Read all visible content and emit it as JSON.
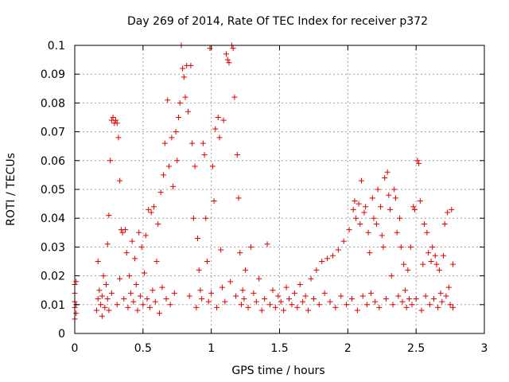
{
  "chart_data": {
    "type": "scatter",
    "title": "Day 269 of 2014, Rate Of TEC Index for receiver p372",
    "xlabel": "GPS time / hours",
    "ylabel": "ROTI / TECUs",
    "xlim": [
      0,
      3
    ],
    "ylim": [
      0,
      0.1
    ],
    "xticks": [
      0,
      0.5,
      1,
      1.5,
      2,
      2.5,
      3
    ],
    "xtick_labels": [
      "0",
      "0.5",
      "1",
      "1.5",
      "2",
      "2.5",
      "3"
    ],
    "yticks": [
      0,
      0.01,
      0.02,
      0.03,
      0.04,
      0.05,
      0.06,
      0.07,
      0.08,
      0.09,
      0.1
    ],
    "ytick_labels": [
      "0",
      "0.01",
      "0.02",
      "0.03",
      "0.04",
      "0.05",
      "0.06",
      "0.07",
      "0.08",
      "0.09",
      "0.1"
    ],
    "grid": true,
    "marker": "+",
    "color": "#e00000",
    "series": [
      {
        "name": "ROTI",
        "points": [
          [
            0.0,
            0.005
          ],
          [
            0.0,
            0.009
          ],
          [
            0.0,
            0.011
          ],
          [
            0.0,
            0.014
          ],
          [
            0.0,
            0.017
          ],
          [
            0.01,
            0.018
          ],
          [
            0.01,
            0.007
          ],
          [
            0.01,
            0.01
          ],
          [
            0.16,
            0.008
          ],
          [
            0.17,
            0.012
          ],
          [
            0.17,
            0.025
          ],
          [
            0.18,
            0.015
          ],
          [
            0.19,
            0.01
          ],
          [
            0.2,
            0.006
          ],
          [
            0.2,
            0.013
          ],
          [
            0.21,
            0.02
          ],
          [
            0.22,
            0.009
          ],
          [
            0.23,
            0.017
          ],
          [
            0.24,
            0.012
          ],
          [
            0.24,
            0.031
          ],
          [
            0.25,
            0.041
          ],
          [
            0.25,
            0.008
          ],
          [
            0.26,
            0.06
          ],
          [
            0.27,
            0.014
          ],
          [
            0.27,
            0.074
          ],
          [
            0.28,
            0.075
          ],
          [
            0.29,
            0.073
          ],
          [
            0.3,
            0.074
          ],
          [
            0.31,
            0.073
          ],
          [
            0.31,
            0.01
          ],
          [
            0.32,
            0.068
          ],
          [
            0.33,
            0.053
          ],
          [
            0.33,
            0.019
          ],
          [
            0.34,
            0.036
          ],
          [
            0.35,
            0.035
          ],
          [
            0.36,
            0.012
          ],
          [
            0.37,
            0.036
          ],
          [
            0.38,
            0.028
          ],
          [
            0.39,
            0.009
          ],
          [
            0.4,
            0.02
          ],
          [
            0.41,
            0.014
          ],
          [
            0.42,
            0.032
          ],
          [
            0.43,
            0.011
          ],
          [
            0.44,
            0.026
          ],
          [
            0.45,
            0.017
          ],
          [
            0.46,
            0.008
          ],
          [
            0.47,
            0.035
          ],
          [
            0.48,
            0.013
          ],
          [
            0.49,
            0.03
          ],
          [
            0.5,
            0.01
          ],
          [
            0.51,
            0.021
          ],
          [
            0.52,
            0.034
          ],
          [
            0.53,
            0.012
          ],
          [
            0.54,
            0.043
          ],
          [
            0.55,
            0.009
          ],
          [
            0.56,
            0.042
          ],
          [
            0.57,
            0.015
          ],
          [
            0.58,
            0.044
          ],
          [
            0.59,
            0.011
          ],
          [
            0.6,
            0.025
          ],
          [
            0.61,
            0.038
          ],
          [
            0.62,
            0.007
          ],
          [
            0.63,
            0.049
          ],
          [
            0.64,
            0.016
          ],
          [
            0.65,
            0.055
          ],
          [
            0.66,
            0.066
          ],
          [
            0.67,
            0.012
          ],
          [
            0.68,
            0.081
          ],
          [
            0.69,
            0.058
          ],
          [
            0.7,
            0.01
          ],
          [
            0.71,
            0.068
          ],
          [
            0.72,
            0.051
          ],
          [
            0.73,
            0.014
          ],
          [
            0.74,
            0.07
          ],
          [
            0.75,
            0.06
          ],
          [
            0.76,
            0.075
          ],
          [
            0.77,
            0.08
          ],
          [
            0.78,
            0.1
          ],
          [
            0.79,
            0.092
          ],
          [
            0.8,
            0.089
          ],
          [
            0.81,
            0.082
          ],
          [
            0.82,
            0.093
          ],
          [
            0.83,
            0.077
          ],
          [
            0.84,
            0.013
          ],
          [
            0.85,
            0.093
          ],
          [
            0.86,
            0.066
          ],
          [
            0.87,
            0.04
          ],
          [
            0.88,
            0.058
          ],
          [
            0.89,
            0.009
          ],
          [
            0.9,
            0.033
          ],
          [
            0.91,
            0.022
          ],
          [
            0.92,
            0.015
          ],
          [
            0.93,
            0.012
          ],
          [
            0.94,
            0.066
          ],
          [
            0.95,
            0.062
          ],
          [
            0.96,
            0.04
          ],
          [
            0.97,
            0.025
          ],
          [
            0.98,
            0.011
          ],
          [
            0.99,
            0.099
          ],
          [
            1.0,
            0.014
          ],
          [
            1.01,
            0.058
          ],
          [
            1.02,
            0.046
          ],
          [
            1.03,
            0.071
          ],
          [
            1.04,
            0.009
          ],
          [
            1.05,
            0.075
          ],
          [
            1.06,
            0.068
          ],
          [
            1.07,
            0.029
          ],
          [
            1.08,
            0.016
          ],
          [
            1.09,
            0.074
          ],
          [
            1.1,
            0.011
          ],
          [
            1.11,
            0.097
          ],
          [
            1.12,
            0.095
          ],
          [
            1.13,
            0.094
          ],
          [
            1.14,
            0.018
          ],
          [
            1.15,
            0.1
          ],
          [
            1.16,
            0.099
          ],
          [
            1.17,
            0.082
          ],
          [
            1.18,
            0.013
          ],
          [
            1.19,
            0.062
          ],
          [
            1.2,
            0.047
          ],
          [
            1.21,
            0.028
          ],
          [
            1.22,
            0.01
          ],
          [
            1.23,
            0.015
          ],
          [
            1.24,
            0.012
          ],
          [
            1.25,
            0.022
          ],
          [
            1.27,
            0.009
          ],
          [
            1.29,
            0.03
          ],
          [
            1.31,
            0.014
          ],
          [
            1.33,
            0.011
          ],
          [
            1.35,
            0.019
          ],
          [
            1.37,
            0.008
          ],
          [
            1.39,
            0.012
          ],
          [
            1.41,
            0.031
          ],
          [
            1.43,
            0.01
          ],
          [
            1.45,
            0.015
          ],
          [
            1.47,
            0.009
          ],
          [
            1.49,
            0.013
          ],
          [
            1.51,
            0.011
          ],
          [
            1.53,
            0.008
          ],
          [
            1.55,
            0.016
          ],
          [
            1.57,
            0.012
          ],
          [
            1.59,
            0.01
          ],
          [
            1.61,
            0.014
          ],
          [
            1.63,
            0.009
          ],
          [
            1.65,
            0.017
          ],
          [
            1.67,
            0.011
          ],
          [
            1.69,
            0.013
          ],
          [
            1.71,
            0.008
          ],
          [
            1.73,
            0.019
          ],
          [
            1.75,
            0.012
          ],
          [
            1.77,
            0.022
          ],
          [
            1.79,
            0.01
          ],
          [
            1.81,
            0.025
          ],
          [
            1.83,
            0.014
          ],
          [
            1.85,
            0.026
          ],
          [
            1.87,
            0.011
          ],
          [
            1.89,
            0.027
          ],
          [
            1.91,
            0.009
          ],
          [
            1.93,
            0.029
          ],
          [
            1.95,
            0.013
          ],
          [
            1.97,
            0.032
          ],
          [
            1.99,
            0.01
          ],
          [
            2.01,
            0.036
          ],
          [
            2.03,
            0.012
          ],
          [
            2.04,
            0.043
          ],
          [
            2.05,
            0.046
          ],
          [
            2.06,
            0.04
          ],
          [
            2.07,
            0.008
          ],
          [
            2.08,
            0.045
          ],
          [
            2.09,
            0.038
          ],
          [
            2.1,
            0.053
          ],
          [
            2.11,
            0.013
          ],
          [
            2.12,
            0.042
          ],
          [
            2.13,
            0.044
          ],
          [
            2.14,
            0.01
          ],
          [
            2.15,
            0.035
          ],
          [
            2.16,
            0.028
          ],
          [
            2.17,
            0.014
          ],
          [
            2.18,
            0.047
          ],
          [
            2.19,
            0.04
          ],
          [
            2.2,
            0.011
          ],
          [
            2.21,
            0.038
          ],
          [
            2.22,
            0.05
          ],
          [
            2.23,
            0.009
          ],
          [
            2.24,
            0.044
          ],
          [
            2.25,
            0.034
          ],
          [
            2.26,
            0.03
          ],
          [
            2.27,
            0.054
          ],
          [
            2.28,
            0.012
          ],
          [
            2.29,
            0.056
          ],
          [
            2.3,
            0.048
          ],
          [
            2.31,
            0.043
          ],
          [
            2.32,
            0.02
          ],
          [
            2.33,
            0.01
          ],
          [
            2.34,
            0.05
          ],
          [
            2.35,
            0.047
          ],
          [
            2.36,
            0.035
          ],
          [
            2.37,
            0.013
          ],
          [
            2.38,
            0.04
          ],
          [
            2.39,
            0.03
          ],
          [
            2.4,
            0.011
          ],
          [
            2.41,
            0.024
          ],
          [
            2.42,
            0.015
          ],
          [
            2.43,
            0.009
          ],
          [
            2.44,
            0.022
          ],
          [
            2.45,
            0.012
          ],
          [
            2.46,
            0.03
          ],
          [
            2.47,
            0.01
          ],
          [
            2.48,
            0.044
          ],
          [
            2.49,
            0.043
          ],
          [
            2.5,
            0.012
          ],
          [
            2.51,
            0.06
          ],
          [
            2.52,
            0.059
          ],
          [
            2.53,
            0.046
          ],
          [
            2.54,
            0.008
          ],
          [
            2.55,
            0.024
          ],
          [
            2.56,
            0.038
          ],
          [
            2.57,
            0.013
          ],
          [
            2.58,
            0.035
          ],
          [
            2.59,
            0.028
          ],
          [
            2.6,
            0.01
          ],
          [
            2.61,
            0.025
          ],
          [
            2.62,
            0.03
          ],
          [
            2.63,
            0.012
          ],
          [
            2.64,
            0.027
          ],
          [
            2.65,
            0.024
          ],
          [
            2.66,
            0.009
          ],
          [
            2.67,
            0.022
          ],
          [
            2.68,
            0.014
          ],
          [
            2.69,
            0.011
          ],
          [
            2.7,
            0.027
          ],
          [
            2.71,
            0.038
          ],
          [
            2.72,
            0.013
          ],
          [
            2.73,
            0.042
          ],
          [
            2.74,
            0.016
          ],
          [
            2.75,
            0.01
          ],
          [
            2.76,
            0.043
          ],
          [
            2.77,
            0.024
          ],
          [
            2.77,
            0.009
          ]
        ]
      }
    ]
  }
}
